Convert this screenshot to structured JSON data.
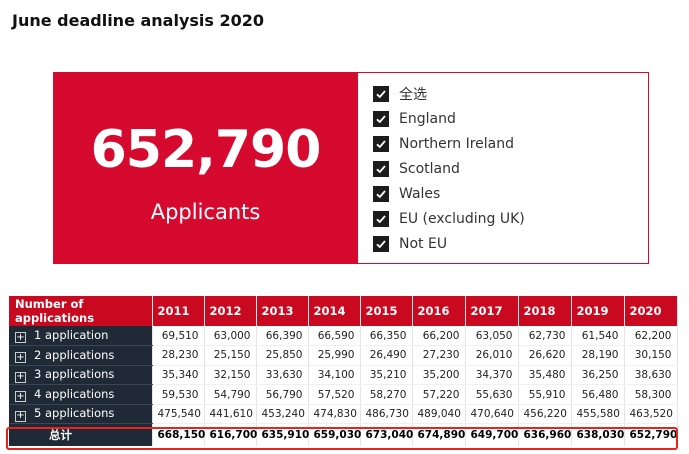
{
  "page": {
    "title": "June deadline analysis 2020"
  },
  "kpi": {
    "value": "652,790",
    "label": "Applicants"
  },
  "slicer": {
    "items": [
      {
        "label": "全选",
        "checked": true
      },
      {
        "label": "England",
        "checked": true
      },
      {
        "label": "Northern Ireland",
        "checked": true
      },
      {
        "label": "Scotland",
        "checked": true
      },
      {
        "label": "Wales",
        "checked": true
      },
      {
        "label": "EU (excluding UK)",
        "checked": true
      },
      {
        "label": "Not EU",
        "checked": true
      }
    ]
  },
  "matrix": {
    "header": [
      "Number of applications",
      "2011",
      "2012",
      "2013",
      "2014",
      "2015",
      "2016",
      "2017",
      "2018",
      "2019",
      "2020"
    ],
    "rows": [
      {
        "label": "1 application",
        "values": [
          "69,510",
          "63,000",
          "66,390",
          "66,590",
          "66,350",
          "66,200",
          "63,050",
          "62,730",
          "61,540",
          "62,200"
        ]
      },
      {
        "label": "2 applications",
        "values": [
          "28,230",
          "25,150",
          "25,850",
          "25,990",
          "26,490",
          "27,230",
          "26,010",
          "26,620",
          "28,190",
          "30,150"
        ]
      },
      {
        "label": "3 applications",
        "values": [
          "35,340",
          "32,150",
          "33,630",
          "34,100",
          "35,210",
          "35,200",
          "34,370",
          "35,480",
          "36,250",
          "38,630"
        ]
      },
      {
        "label": "4 applications",
        "values": [
          "59,530",
          "54,790",
          "56,790",
          "57,520",
          "58,270",
          "57,220",
          "55,630",
          "55,910",
          "56,480",
          "58,300"
        ]
      },
      {
        "label": "5 applications",
        "values": [
          "475,540",
          "441,610",
          "453,240",
          "474,830",
          "486,730",
          "489,040",
          "470,640",
          "456,220",
          "455,580",
          "463,520"
        ]
      }
    ],
    "total": {
      "label": "总计",
      "values": [
        "668,150",
        "616,700",
        "635,910",
        "659,030",
        "673,040",
        "674,890",
        "649,700",
        "636,960",
        "638,030",
        "652,790"
      ]
    }
  },
  "colors": {
    "kpi_background": "#d60a2e",
    "header_background": "#c8091f",
    "row_header_background": "#1f2a36",
    "highlight_border": "#e8231d"
  },
  "icons": {
    "checkbox": "checkmark-icon",
    "expand": "plus-expand-icon"
  }
}
